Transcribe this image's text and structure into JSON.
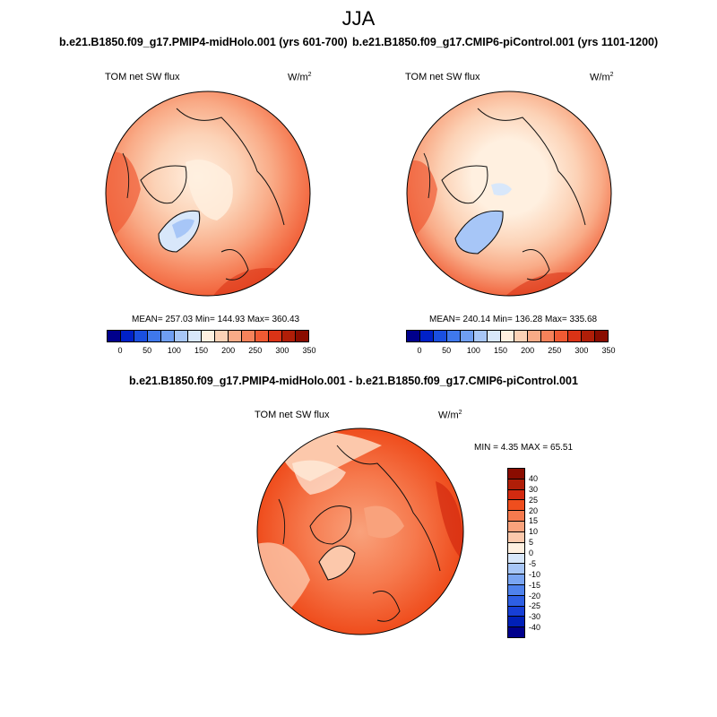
{
  "season": "JJA",
  "colors": {
    "abs_scale": [
      "#00008c",
      "#0021c8",
      "#1a4fe0",
      "#3f78ec",
      "#6f9ef2",
      "#a7c6f7",
      "#d8e7fa",
      "#fff0e0",
      "#fcd2b6",
      "#f9ab87",
      "#f6825a",
      "#f05a33",
      "#da3316",
      "#b01e08",
      "#8a0c00"
    ],
    "diff_scale": [
      "#8a0c00",
      "#b01e08",
      "#d32a10",
      "#ef4e1e",
      "#f67a4e",
      "#f9a27c",
      "#fcc8ab",
      "#fff0e0",
      "#d8e7fa",
      "#a7c6f7",
      "#7aa5f2",
      "#4f82ec",
      "#2e5fe4",
      "#173fd6",
      "#0020b8",
      "#00008c"
    ]
  },
  "panels": [
    {
      "title": "b.e21.B1850.f09_g17.PMIP4-midHolo.001 (yrs 601-700)",
      "variable": "TOM net SW flux",
      "units_base": "W/m",
      "units_sup": "2",
      "stats": "MEAN= 257.03  Min= 144.93  Max= 360.43",
      "ticks": [
        "0",
        "50",
        "100",
        "150",
        "200",
        "250",
        "300",
        "350"
      ]
    },
    {
      "title": "b.e21.B1850.f09_g17.CMIP6-piControl.001 (yrs 1101-1200)",
      "variable": "TOM net SW flux",
      "units_base": "W/m",
      "units_sup": "2",
      "stats": "MEAN= 240.14  Min= 136.28  Max= 335.68",
      "ticks": [
        "0",
        "50",
        "100",
        "150",
        "200",
        "250",
        "300",
        "350"
      ]
    }
  ],
  "diff": {
    "title": "b.e21.B1850.f09_g17.PMIP4-midHolo.001 - b.e21.B1850.f09_g17.CMIP6-piControl.001",
    "variable": "TOM net SW flux",
    "units_base": "W/m",
    "units_sup": "2",
    "stats": "MIN =   4.35 MAX =  65.51",
    "ticks": [
      "40",
      "30",
      "25",
      "20",
      "15",
      "10",
      "5",
      "0",
      "-5",
      "-10",
      "-15",
      "-20",
      "-25",
      "-30",
      "-40"
    ]
  }
}
